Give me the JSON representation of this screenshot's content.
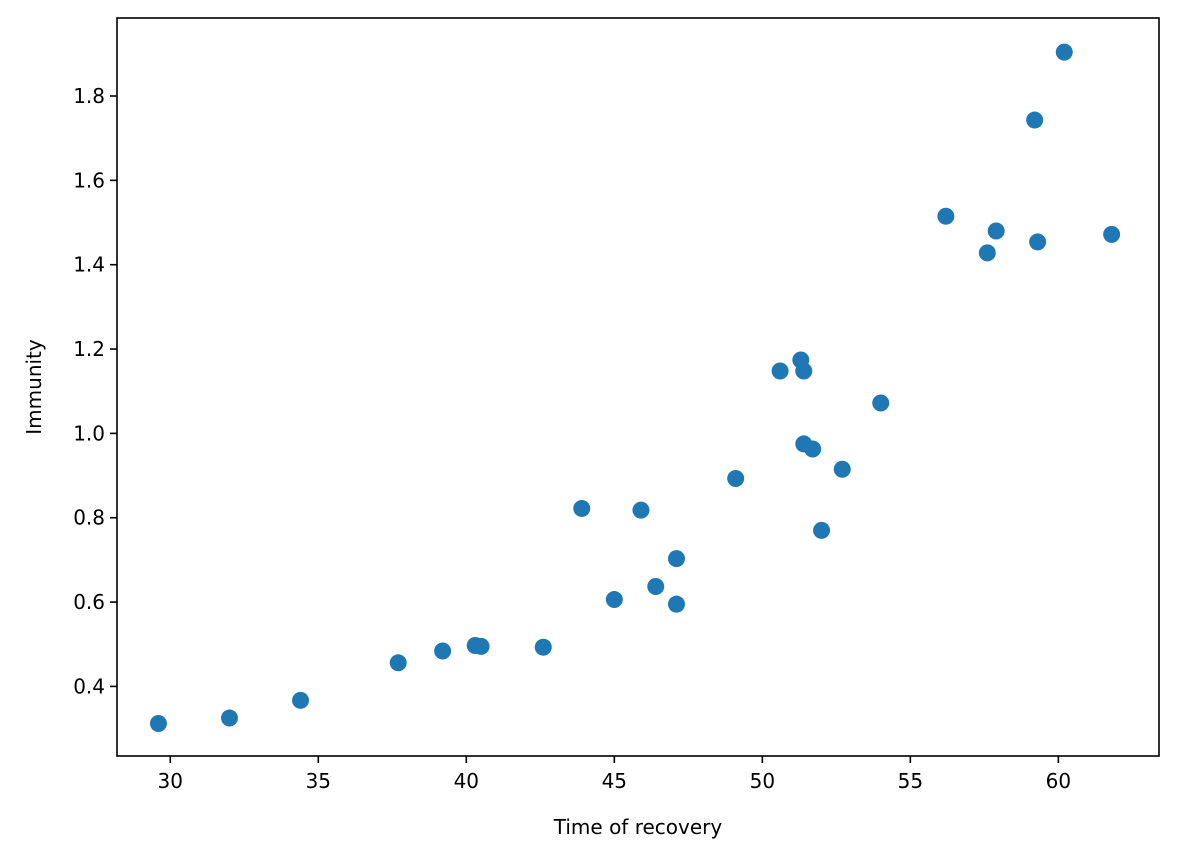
{
  "chart_data": {
    "type": "scatter",
    "title": "",
    "xlabel": "Time of recovery",
    "ylabel": "Immunity",
    "xlim": [
      28.2,
      63.4
    ],
    "ylim": [
      0.235,
      1.985
    ],
    "xticks": [
      30,
      35,
      40,
      45,
      50,
      55,
      60
    ],
    "yticks": [
      0.4,
      0.6,
      0.8,
      1.0,
      1.2,
      1.4,
      1.6,
      1.8
    ],
    "ytick_labels": [
      "0.4",
      "0.6",
      "0.8",
      "1.0",
      "1.2",
      "1.4",
      "1.6",
      "1.8"
    ],
    "grid": false,
    "color": "#1f77b4",
    "points": [
      {
        "x": 29.6,
        "y": 0.312
      },
      {
        "x": 32.0,
        "y": 0.325
      },
      {
        "x": 34.4,
        "y": 0.367
      },
      {
        "x": 37.7,
        "y": 0.456
      },
      {
        "x": 39.2,
        "y": 0.484
      },
      {
        "x": 40.3,
        "y": 0.497
      },
      {
        "x": 40.5,
        "y": 0.495
      },
      {
        "x": 42.6,
        "y": 0.493
      },
      {
        "x": 43.9,
        "y": 0.822
      },
      {
        "x": 45.0,
        "y": 0.606
      },
      {
        "x": 45.9,
        "y": 0.818
      },
      {
        "x": 46.4,
        "y": 0.637
      },
      {
        "x": 47.1,
        "y": 0.703
      },
      {
        "x": 47.1,
        "y": 0.595
      },
      {
        "x": 49.1,
        "y": 0.893
      },
      {
        "x": 50.6,
        "y": 1.148
      },
      {
        "x": 51.3,
        "y": 1.174
      },
      {
        "x": 51.4,
        "y": 0.975
      },
      {
        "x": 51.4,
        "y": 1.148
      },
      {
        "x": 51.7,
        "y": 0.963
      },
      {
        "x": 52.0,
        "y": 0.77
      },
      {
        "x": 52.7,
        "y": 0.915
      },
      {
        "x": 54.0,
        "y": 1.072
      },
      {
        "x": 56.2,
        "y": 1.515
      },
      {
        "x": 57.6,
        "y": 1.428
      },
      {
        "x": 57.9,
        "y": 1.48
      },
      {
        "x": 59.2,
        "y": 1.743
      },
      {
        "x": 59.3,
        "y": 1.454
      },
      {
        "x": 60.2,
        "y": 1.904
      },
      {
        "x": 61.8,
        "y": 1.472
      }
    ]
  }
}
